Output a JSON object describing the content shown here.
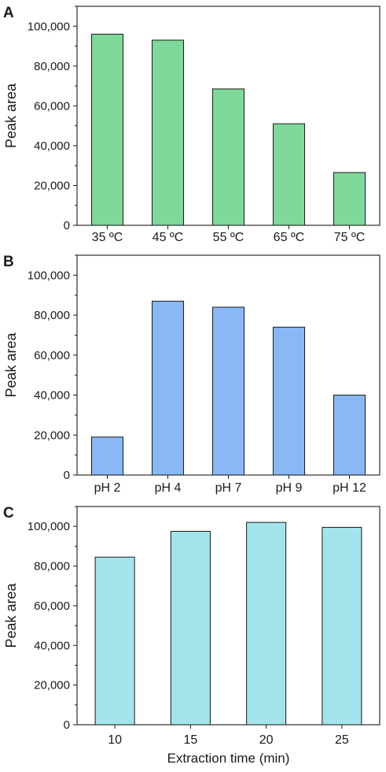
{
  "chart_data": [
    {
      "type": "bar",
      "panel": "A",
      "categories": [
        "35 ºC",
        "45 ºC",
        "55 ºC",
        "65 ºC",
        "75 ºC"
      ],
      "values": [
        96000,
        93000,
        68500,
        51000,
        26500
      ],
      "xlabel": "",
      "ylabel": "Peak area",
      "ylim": [
        0,
        110000
      ],
      "yticks": [
        "0",
        "20,000",
        "40,000",
        "60,000",
        "80,000",
        "100,000"
      ],
      "color": "#7fd99a",
      "grid": false
    },
    {
      "type": "bar",
      "panel": "B",
      "categories": [
        "pH 2",
        "pH 4",
        "pH 7",
        "pH 9",
        "pH 12"
      ],
      "values": [
        19000,
        87000,
        84000,
        74000,
        40000
      ],
      "xlabel": "",
      "ylabel": "Peak area",
      "ylim": [
        0,
        110000
      ],
      "yticks": [
        "0",
        "20,000",
        "40,000",
        "60,000",
        "80,000",
        "100,000"
      ],
      "color": "#8ab8f5",
      "grid": false
    },
    {
      "type": "bar",
      "panel": "C",
      "categories": [
        "10",
        "15",
        "20",
        "25"
      ],
      "values": [
        84500,
        97500,
        102000,
        99500
      ],
      "xlabel": "Extraction time (min)",
      "ylabel": "Peak area",
      "ylim": [
        0,
        110000
      ],
      "yticks": [
        "0",
        "20,000",
        "40,000",
        "60,000",
        "80,000",
        "100,000"
      ],
      "color": "#a3e4ec",
      "grid": false
    }
  ]
}
